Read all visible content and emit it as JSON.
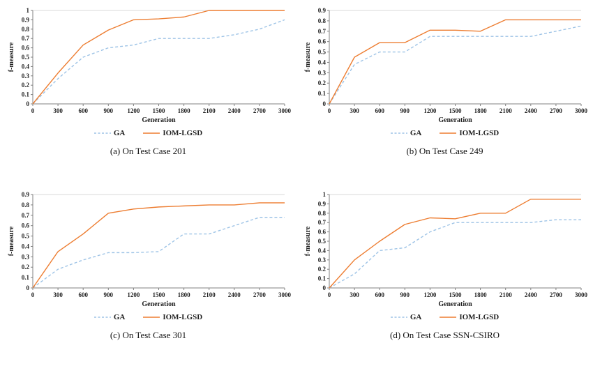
{
  "page": {
    "background": "#ffffff"
  },
  "chart_data": [
    {
      "type": "line",
      "caption": "(a) On Test Case 201",
      "xlabel": "Generation",
      "ylabel": "f-measure",
      "x": [
        0,
        300,
        600,
        900,
        1200,
        1500,
        1800,
        2100,
        2400,
        2700,
        3000
      ],
      "ylim": [
        0,
        1
      ],
      "ystep": 0.1,
      "grid": "top-border-only",
      "legend_position": "bottom",
      "series": [
        {
          "name": "GA",
          "color": "#9dc3e6",
          "dash": "4 3",
          "values": [
            0,
            0.27,
            0.5,
            0.6,
            0.63,
            0.7,
            0.7,
            0.7,
            0.74,
            0.8,
            0.9
          ]
        },
        {
          "name": "IOM-LGSD",
          "color": "#ed7d31",
          "dash": "",
          "values": [
            0,
            0.33,
            0.63,
            0.79,
            0.9,
            0.91,
            0.93,
            1,
            1,
            1,
            1
          ]
        }
      ]
    },
    {
      "type": "line",
      "caption": "(b) On Test Case 249",
      "xlabel": "Generation",
      "ylabel": "f-measure",
      "x": [
        0,
        300,
        600,
        900,
        1200,
        1500,
        1800,
        2100,
        2400,
        2700,
        3000
      ],
      "ylim": [
        0,
        0.9
      ],
      "ystep": 0.1,
      "grid": "top-border-only",
      "legend_position": "bottom",
      "series": [
        {
          "name": "GA",
          "color": "#9dc3e6",
          "dash": "4 3",
          "values": [
            0,
            0.38,
            0.5,
            0.5,
            0.65,
            0.65,
            0.65,
            0.65,
            0.65,
            0.7,
            0.75
          ]
        },
        {
          "name": "IOM-LGSD",
          "color": "#ed7d31",
          "dash": "",
          "values": [
            0,
            0.45,
            0.59,
            0.59,
            0.71,
            0.71,
            0.7,
            0.81,
            0.81,
            0.81,
            0.81
          ]
        }
      ]
    },
    {
      "type": "line",
      "caption": "(c) On Test Case 301",
      "xlabel": "Generation",
      "ylabel": "f-measure",
      "x": [
        0,
        300,
        600,
        900,
        1200,
        1500,
        1800,
        2100,
        2400,
        2700,
        3000
      ],
      "ylim": [
        0,
        0.9
      ],
      "ystep": 0.1,
      "grid": "top-border-only",
      "legend_position": "bottom",
      "series": [
        {
          "name": "GA",
          "color": "#9dc3e6",
          "dash": "4 3",
          "values": [
            0,
            0.18,
            0.27,
            0.34,
            0.34,
            0.35,
            0.52,
            0.52,
            0.6,
            0.68,
            0.68
          ]
        },
        {
          "name": "IOM-LGSD",
          "color": "#ed7d31",
          "dash": "",
          "values": [
            0,
            0.35,
            0.52,
            0.72,
            0.76,
            0.78,
            0.79,
            0.8,
            0.8,
            0.82,
            0.82
          ]
        }
      ]
    },
    {
      "type": "line",
      "caption": "(d) On Test Case SSN-CSIRO",
      "xlabel": "Generation",
      "ylabel": "f-measure",
      "x": [
        0,
        300,
        600,
        900,
        1200,
        1500,
        1800,
        2100,
        2400,
        2700,
        3000
      ],
      "ylim": [
        0,
        1
      ],
      "ystep": 0.1,
      "grid": "top-border-only",
      "legend_position": "bottom",
      "series": [
        {
          "name": "GA",
          "color": "#9dc3e6",
          "dash": "4 3",
          "values": [
            0,
            0.15,
            0.4,
            0.43,
            0.6,
            0.7,
            0.7,
            0.7,
            0.7,
            0.73,
            0.73
          ]
        },
        {
          "name": "IOM-LGSD",
          "color": "#ed7d31",
          "dash": "",
          "values": [
            0,
            0.3,
            0.5,
            0.68,
            0.75,
            0.74,
            0.8,
            0.8,
            0.95,
            0.95,
            0.95
          ]
        }
      ]
    }
  ],
  "style": {
    "axis_color": "#808080",
    "top_gridline_color": "#d9d9d9",
    "text_color": "#1f1f1f"
  }
}
